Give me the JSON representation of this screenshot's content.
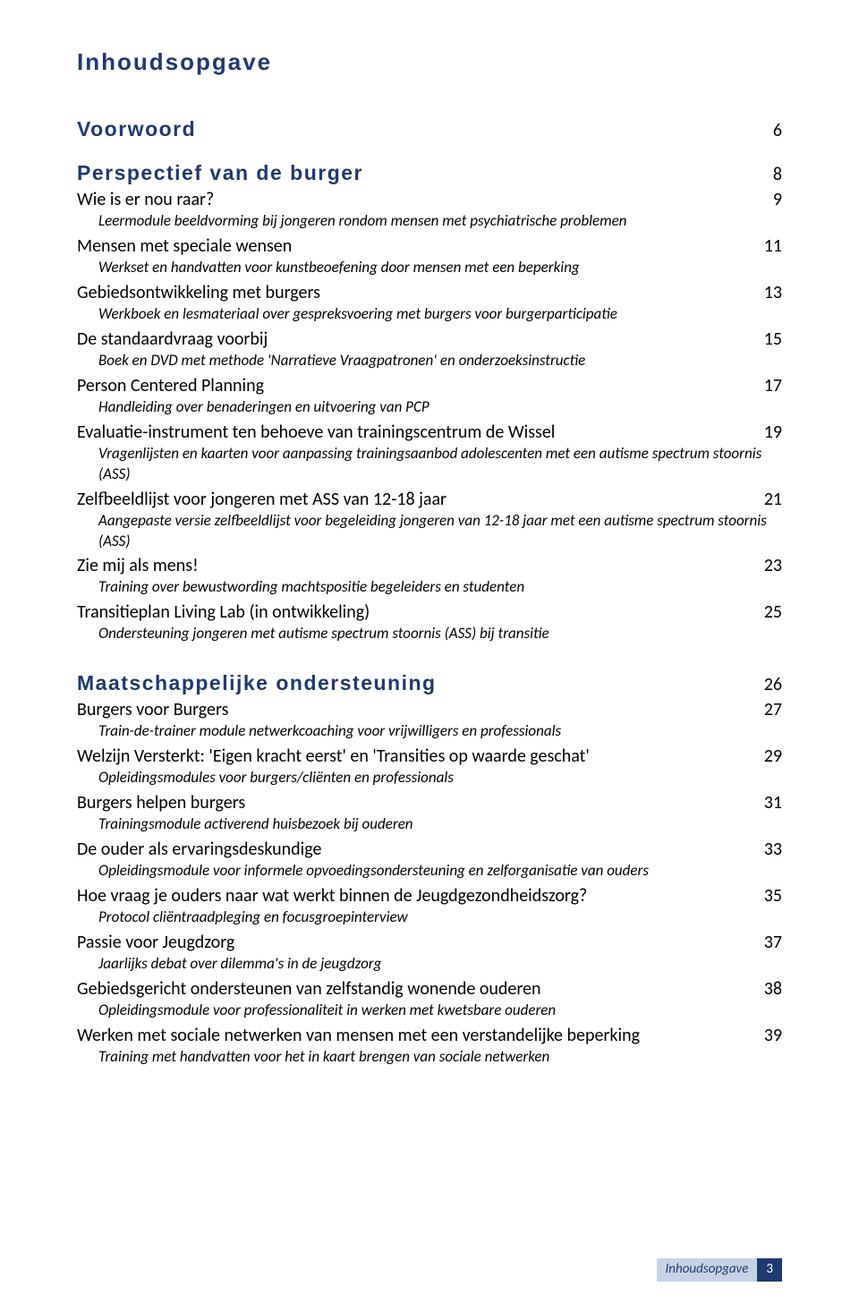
{
  "colors": {
    "heading": "#1f3a6e",
    "footer_bg_light": "#c6d3e7",
    "footer_bg_dark": "#1f3a6e",
    "text": "#000000",
    "page_bg": "#ffffff"
  },
  "typography": {
    "heading_font": "Verdana",
    "body_font": "Calibri",
    "main_title_size_pt": 20,
    "section_title_size_pt": 17,
    "entry_title_size_pt": 15,
    "entry_desc_size_pt": 13,
    "footer_size_pt": 11
  },
  "main_title": "Inhoudsopgave",
  "voorwoord": {
    "label": "Voorwoord",
    "page": "6"
  },
  "section1": {
    "title": "Perspectief van de burger",
    "page": "8",
    "entries": [
      {
        "title": "Wie is er nou raar?",
        "page": "9",
        "desc": "Leermodule beeldvorming bij jongeren rondom mensen met psychiatrische problemen"
      },
      {
        "title": "Mensen met speciale wensen",
        "page": "11",
        "desc": "Werkset en handvatten voor kunstbeoefening door mensen met een beperking"
      },
      {
        "title": "Gebiedsontwikkeling met burgers",
        "page": "13",
        "desc": "Werkboek en lesmateriaal over gespreksvoering met burgers voor burgerparticipatie"
      },
      {
        "title": "De standaardvraag voorbij",
        "page": "15",
        "desc": "Boek en DVD met methode 'Narratieve Vraagpatronen' en onderzoeksinstructie"
      },
      {
        "title": "Person Centered Planning",
        "page": "17",
        "desc": "Handleiding over benaderingen en uitvoering van PCP"
      },
      {
        "title": "Evaluatie-instrument ten behoeve van trainingscentrum de Wissel",
        "page": "19",
        "desc": "Vragenlijsten en kaarten voor aanpassing trainingsaanbod adolescenten met een autisme spectrum stoornis (ASS)"
      },
      {
        "title": "Zelfbeeldlijst voor jongeren met ASS van 12-18 jaar",
        "page": "21",
        "desc": "Aangepaste versie zelfbeeldlijst voor begeleiding jongeren van 12-18 jaar met een autisme spectrum stoornis (ASS)"
      },
      {
        "title": "Zie mij als mens!",
        "page": "23",
        "desc": "Training over bewustwording machtspositie begeleiders en studenten"
      },
      {
        "title": "Transitieplan Living Lab (in ontwikkeling)",
        "page": "25",
        "desc": "Ondersteuning jongeren met autisme spectrum stoornis (ASS) bij transitie"
      }
    ]
  },
  "section2": {
    "title": "Maatschappelijke ondersteuning",
    "page": "26",
    "entries": [
      {
        "title": "Burgers voor Burgers",
        "page": "27",
        "desc": "Train-de-trainer module netwerkcoaching voor vrijwilligers en professionals"
      },
      {
        "title": "Welzijn Versterkt: 'Eigen kracht eerst' en 'Transities op waarde geschat'",
        "page": "29",
        "desc": "Opleidingsmodules voor burgers/cliënten en professionals"
      },
      {
        "title": "Burgers helpen burgers",
        "page": "31",
        "desc": "Trainingsmodule activerend huisbezoek bij ouderen"
      },
      {
        "title": "De ouder als ervaringsdeskundige",
        "page": "33",
        "desc": "Opleidingsmodule voor informele opvoedingsondersteuning en zelforganisatie van ouders"
      },
      {
        "title": "Hoe vraag je ouders naar wat werkt binnen de Jeugdgezondheidszorg?",
        "page": "35",
        "desc": "Protocol cliëntraadpleging en focusgroepinterview"
      },
      {
        "title": "Passie voor Jeugdzorg",
        "page": "37",
        "desc": "Jaarlijks debat over dilemma's in de jeugdzorg"
      },
      {
        "title": "Gebiedsgericht ondersteunen van zelfstandig wonende ouderen",
        "page": "38",
        "desc": "Opleidingsmodule voor professionaliteit in werken met kwetsbare ouderen"
      },
      {
        "title": "Werken met sociale netwerken van mensen met een verstandelijke beperking",
        "page": "39",
        "desc": "Training met handvatten voor het in kaart brengen van sociale netwerken"
      }
    ]
  },
  "footer": {
    "label": "Inhoudsopgave",
    "page": "3"
  }
}
